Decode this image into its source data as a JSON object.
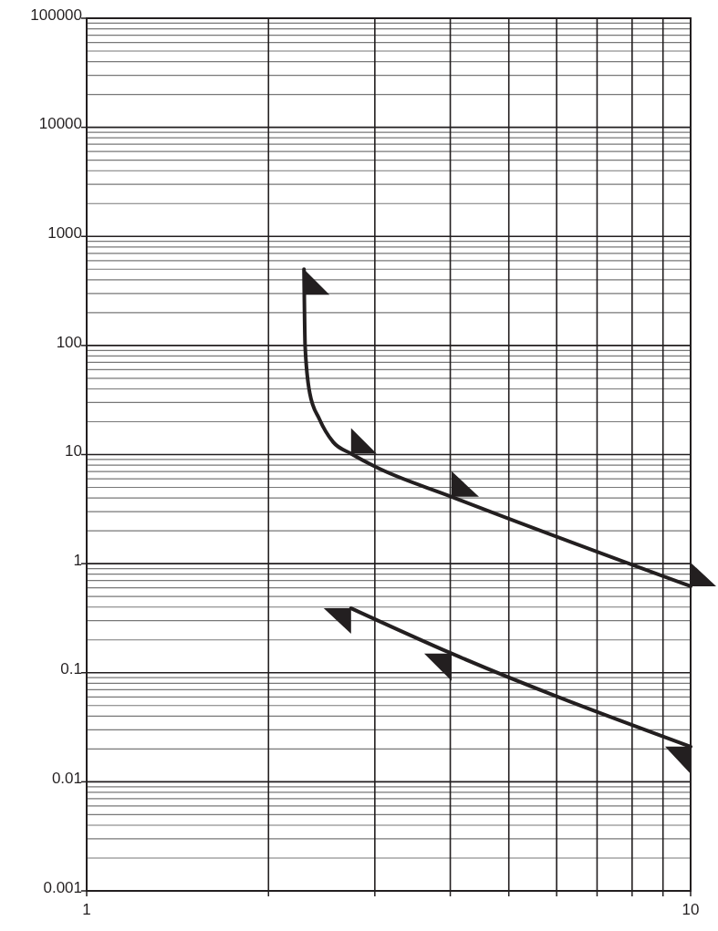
{
  "chart_data": {
    "type": "line",
    "log": "xy",
    "grid": true,
    "marker": "none",
    "line_style": "solid",
    "xlim": [
      1,
      10
    ],
    "ylim": [
      0.001,
      100000
    ],
    "xticks": [
      1,
      {
        "value": 2,
        "label": null
      },
      {
        "value": 3,
        "label": null
      },
      {
        "value": 4,
        "label": null
      },
      {
        "value": 5,
        "label": null
      },
      {
        "value": 6,
        "label": null
      },
      {
        "value": 7,
        "label": null
      },
      {
        "value": 8,
        "label": null
      },
      {
        "value": 9,
        "label": null
      },
      10
    ],
    "yticks": [
      0.001,
      0.01,
      0.1,
      1,
      10,
      100,
      1000,
      10000,
      100000
    ],
    "series": [
      {
        "color": "#231f20",
        "x": [
          2.29,
          2.3,
          2.34,
          2.43,
          2.56,
          2.74,
          3.01,
          4.02,
          10
        ],
        "values": [
          500,
          98,
          37,
          21,
          13,
          10.2,
          7.7,
          4.1,
          0.62
        ]
      },
      {
        "color": "#231f20",
        "x": [
          2.74,
          4.02,
          10
        ],
        "values": [
          0.39,
          0.15,
          0.021
        ]
      }
    ]
  }
}
